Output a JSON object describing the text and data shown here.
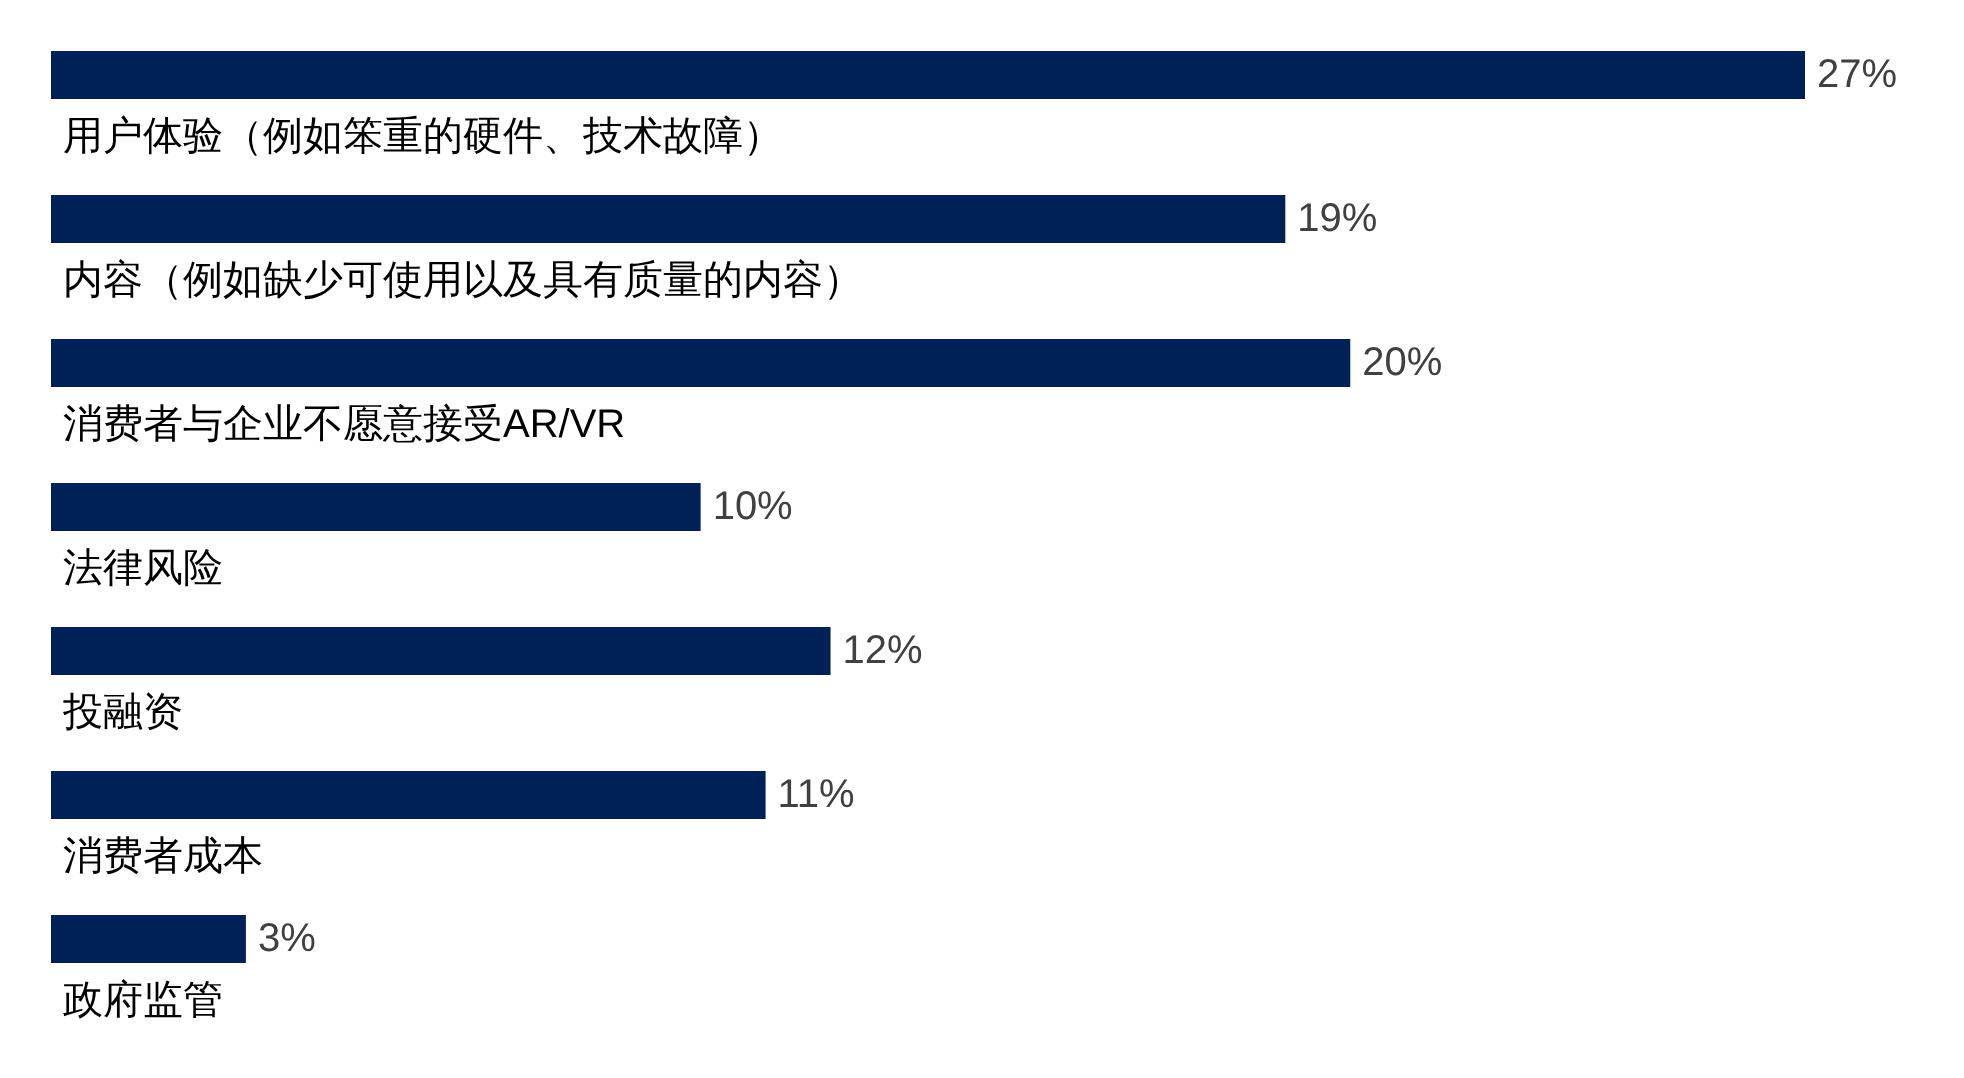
{
  "chart_data": {
    "type": "bar",
    "orientation": "horizontal",
    "categories": [
      "用户体验（例如笨重的硬件、技术故障）",
      "内容（例如缺少可使用以及具有质量的内容）",
      "消费者与企业不愿意接受AR/VR",
      "法律风险",
      "投融资",
      "消费者成本",
      "政府监管"
    ],
    "values": [
      27,
      19,
      20,
      10,
      12,
      11,
      3
    ],
    "value_labels": [
      "27%",
      "19%",
      "20%",
      "10%",
      "12%",
      "11%",
      "3%"
    ],
    "color": "#002157"
  }
}
